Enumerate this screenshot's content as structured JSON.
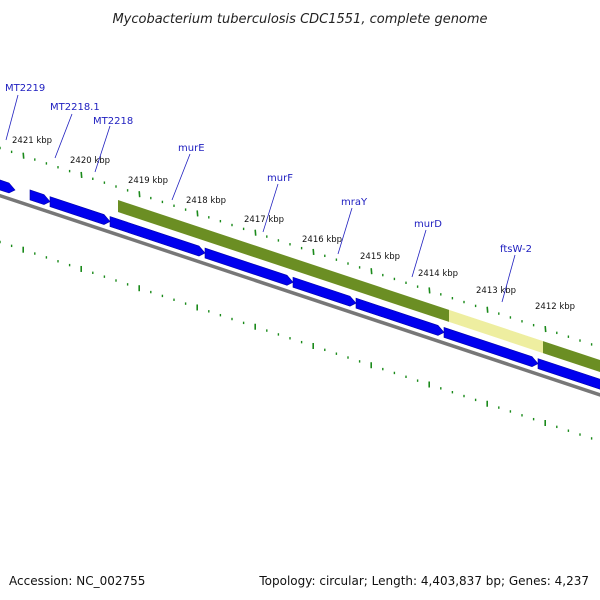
{
  "title": "Mycobacterium tuberculosis CDC1551, complete genome",
  "colors": {
    "gene_forward": "#0000ee",
    "gene_highlight": "#6b8e23",
    "gene_highlight_pale": "#eeeea0",
    "backbone": "#777777",
    "tick": "#1a8a1a",
    "label_line": "#2020c0"
  },
  "kbp_ticks": [
    {
      "label": "2421 kbp"
    },
    {
      "label": "2420 kbp"
    },
    {
      "label": "2419 kbp"
    },
    {
      "label": "2418 kbp"
    },
    {
      "label": "2417 kbp"
    },
    {
      "label": "2416 kbp"
    },
    {
      "label": "2415 kbp"
    },
    {
      "label": "2414 kbp"
    },
    {
      "label": "2413 kbp"
    },
    {
      "label": "2412 kbp"
    }
  ],
  "genes": [
    {
      "name": "MT2219"
    },
    {
      "name": "MT2218.1"
    },
    {
      "name": "MT2218"
    },
    {
      "name": "murE"
    },
    {
      "name": "murF"
    },
    {
      "name": "mraY"
    },
    {
      "name": "murD"
    },
    {
      "name": "ftsW-2"
    }
  ],
  "footer": {
    "accession": "Accession: NC_002755",
    "summary": "Topology: circular; Length: 4,403,837 bp; Genes: 4,237"
  }
}
